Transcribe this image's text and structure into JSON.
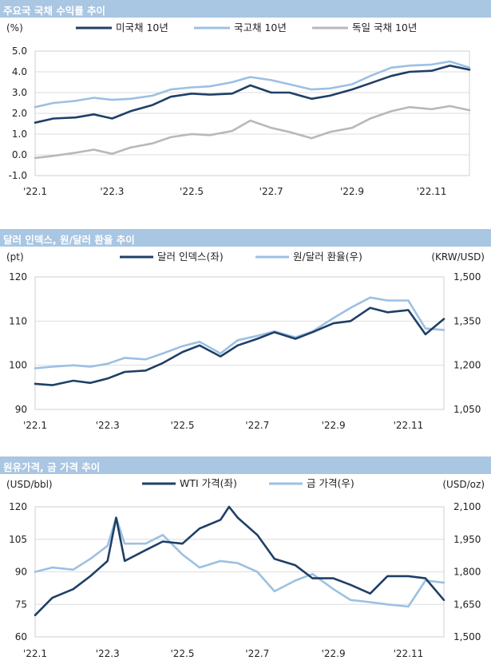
{
  "panels": [
    {
      "title": "주요국 국채 수익률 추이"
    },
    {
      "title": "달러 인덱스, 원/달러 환율 추이"
    },
    {
      "title": "원유가격, 금 가격 추이"
    }
  ],
  "chart_data": [
    {
      "type": "line",
      "title": "주요국 국채 수익률 추이",
      "left_unit": "(%)",
      "x_range": [
        "2022-01-01",
        "2022-11-30"
      ],
      "x_ticks": [
        {
          "label": "'22.1",
          "date": "2022-01-01"
        },
        {
          "label": "'22.3",
          "date": "2022-03-01"
        },
        {
          "label": "'22.5",
          "date": "2022-05-01"
        },
        {
          "label": "'22.7",
          "date": "2022-07-01"
        },
        {
          "label": "'22.9",
          "date": "2022-09-01"
        },
        {
          "label": "'22.11",
          "date": "2022-11-01"
        }
      ],
      "ylim": [
        -1.0,
        5.0
      ],
      "yticks": [
        "-1.0",
        "0.0",
        "1.0",
        "2.0",
        "3.0",
        "4.0",
        "5.0"
      ],
      "grid": true,
      "legend_position": "top",
      "series": [
        {
          "name": "미국채 10년",
          "color": "#1f3f66",
          "axis": "left",
          "dates": [
            "2022-01-01",
            "2022-01-15",
            "2022-02-01",
            "2022-02-15",
            "2022-03-01",
            "2022-03-15",
            "2022-04-01",
            "2022-04-15",
            "2022-05-01",
            "2022-05-15",
            "2022-06-01",
            "2022-06-15",
            "2022-07-01",
            "2022-07-15",
            "2022-08-01",
            "2022-08-15",
            "2022-09-01",
            "2022-09-15",
            "2022-10-01",
            "2022-10-15",
            "2022-11-01",
            "2022-11-15",
            "2022-11-30"
          ],
          "values": [
            1.55,
            1.75,
            1.8,
            1.95,
            1.75,
            2.1,
            2.4,
            2.8,
            2.95,
            2.9,
            2.95,
            3.35,
            3.0,
            3.0,
            2.7,
            2.85,
            3.15,
            3.45,
            3.8,
            4.0,
            4.05,
            4.3,
            4.1
          ]
        },
        {
          "name": "국고채 10년",
          "color": "#9cc0e2",
          "axis": "left",
          "dates": [
            "2022-01-01",
            "2022-01-15",
            "2022-02-01",
            "2022-02-15",
            "2022-03-01",
            "2022-03-15",
            "2022-04-01",
            "2022-04-15",
            "2022-05-01",
            "2022-05-15",
            "2022-06-01",
            "2022-06-15",
            "2022-07-01",
            "2022-07-15",
            "2022-08-01",
            "2022-08-15",
            "2022-09-01",
            "2022-09-15",
            "2022-10-01",
            "2022-10-15",
            "2022-11-01",
            "2022-11-15",
            "2022-11-30"
          ],
          "values": [
            2.3,
            2.5,
            2.6,
            2.75,
            2.65,
            2.7,
            2.85,
            3.15,
            3.25,
            3.3,
            3.5,
            3.75,
            3.6,
            3.4,
            3.15,
            3.2,
            3.4,
            3.8,
            4.2,
            4.3,
            4.35,
            4.5,
            4.2
          ]
        },
        {
          "name": "독일 국채 10년",
          "color": "#b8b8b8",
          "axis": "left",
          "dates": [
            "2022-01-01",
            "2022-01-15",
            "2022-02-01",
            "2022-02-15",
            "2022-03-01",
            "2022-03-15",
            "2022-04-01",
            "2022-04-15",
            "2022-05-01",
            "2022-05-15",
            "2022-06-01",
            "2022-06-15",
            "2022-07-01",
            "2022-07-15",
            "2022-08-01",
            "2022-08-15",
            "2022-09-01",
            "2022-09-15",
            "2022-10-01",
            "2022-10-15",
            "2022-11-01",
            "2022-11-15",
            "2022-11-30"
          ],
          "values": [
            -0.15,
            -0.05,
            0.1,
            0.25,
            0.05,
            0.35,
            0.55,
            0.85,
            1.0,
            0.95,
            1.15,
            1.65,
            1.3,
            1.1,
            0.8,
            1.1,
            1.3,
            1.75,
            2.1,
            2.3,
            2.2,
            2.35,
            2.15
          ]
        }
      ]
    },
    {
      "type": "line",
      "title": "달러 인덱스, 원/달러 환율 추이",
      "left_unit": "(pt)",
      "right_unit": "(KRW/USD)",
      "x_range": [
        "2022-01-01",
        "2022-11-30"
      ],
      "x_ticks": [
        {
          "label": "'22.1",
          "date": "2022-01-01"
        },
        {
          "label": "'22.3",
          "date": "2022-03-01"
        },
        {
          "label": "'22.5",
          "date": "2022-05-01"
        },
        {
          "label": "'22.7",
          "date": "2022-07-01"
        },
        {
          "label": "'22.9",
          "date": "2022-09-01"
        },
        {
          "label": "'22.11",
          "date": "2022-11-01"
        }
      ],
      "ylim": [
        90,
        120
      ],
      "yticks": [
        "90",
        "100",
        "110",
        "120"
      ],
      "ylim_right": [
        1050,
        1500
      ],
      "yticks_right": [
        "1,050",
        "1,200",
        "1,350",
        "1,500"
      ],
      "grid": true,
      "legend_position": "top",
      "series": [
        {
          "name": "달러 인덱스(좌)",
          "color": "#1f3f66",
          "axis": "left",
          "dates": [
            "2022-01-01",
            "2022-01-15",
            "2022-02-01",
            "2022-02-15",
            "2022-03-01",
            "2022-03-15",
            "2022-04-01",
            "2022-04-15",
            "2022-05-01",
            "2022-05-15",
            "2022-06-01",
            "2022-06-15",
            "2022-07-01",
            "2022-07-15",
            "2022-08-01",
            "2022-08-15",
            "2022-09-01",
            "2022-09-15",
            "2022-10-01",
            "2022-10-15",
            "2022-11-01",
            "2022-11-15",
            "2022-11-30"
          ],
          "values": [
            95.8,
            95.5,
            96.5,
            96.0,
            97.0,
            98.5,
            98.8,
            100.5,
            103.0,
            104.5,
            102.0,
            104.5,
            106.0,
            107.5,
            106.0,
            107.5,
            109.5,
            110.0,
            113.0,
            112.0,
            112.5,
            107.0,
            110.5
          ]
        },
        {
          "name": "원/달러 환율(우)",
          "color": "#9cc0e2",
          "axis": "right",
          "dates": [
            "2022-01-01",
            "2022-01-15",
            "2022-02-01",
            "2022-02-15",
            "2022-03-01",
            "2022-03-15",
            "2022-04-01",
            "2022-04-15",
            "2022-05-01",
            "2022-05-15",
            "2022-06-01",
            "2022-06-15",
            "2022-07-01",
            "2022-07-15",
            "2022-08-01",
            "2022-08-15",
            "2022-09-01",
            "2022-09-15",
            "2022-10-01",
            "2022-10-15",
            "2022-11-01",
            "2022-11-15",
            "2022-11-30"
          ],
          "values": [
            1190,
            1195,
            1200,
            1195,
            1205,
            1225,
            1220,
            1240,
            1265,
            1280,
            1240,
            1285,
            1300,
            1315,
            1295,
            1315,
            1360,
            1395,
            1430,
            1420,
            1420,
            1325,
            1320
          ]
        }
      ]
    },
    {
      "type": "line",
      "title": "원유가격, 금 가격 추이",
      "left_unit": "(USD/bbl)",
      "right_unit": "(USD/oz)",
      "x_range": [
        "2022-01-01",
        "2022-11-30"
      ],
      "x_ticks": [
        {
          "label": "'22.1",
          "date": "2022-01-01"
        },
        {
          "label": "'22.3",
          "date": "2022-03-01"
        },
        {
          "label": "'22.5",
          "date": "2022-05-01"
        },
        {
          "label": "'22.7",
          "date": "2022-07-01"
        },
        {
          "label": "'22.9",
          "date": "2022-09-01"
        },
        {
          "label": "'22.11",
          "date": "2022-11-01"
        }
      ],
      "ylim": [
        60,
        120
      ],
      "yticks": [
        "60",
        "75",
        "90",
        "105",
        "120"
      ],
      "ylim_right": [
        1500,
        2100
      ],
      "yticks_right": [
        "1,500",
        "1,650",
        "1,800",
        "1,950",
        "2,100"
      ],
      "grid": true,
      "legend_position": "top",
      "series": [
        {
          "name": "WTI 가격(좌)",
          "color": "#1f3f66",
          "axis": "left",
          "dates": [
            "2022-01-01",
            "2022-01-15",
            "2022-02-01",
            "2022-02-15",
            "2022-03-01",
            "2022-03-08",
            "2022-03-15",
            "2022-04-01",
            "2022-04-15",
            "2022-05-01",
            "2022-05-15",
            "2022-06-01",
            "2022-06-08",
            "2022-06-15",
            "2022-07-01",
            "2022-07-15",
            "2022-08-01",
            "2022-08-15",
            "2022-09-01",
            "2022-09-15",
            "2022-10-01",
            "2022-10-15",
            "2022-11-01",
            "2022-11-15",
            "2022-11-30"
          ],
          "values": [
            70,
            78,
            82,
            88,
            95,
            115,
            95,
            100,
            104,
            103,
            110,
            114,
            120,
            115,
            107,
            96,
            93,
            87,
            87,
            84,
            80,
            88,
            88,
            87,
            77
          ]
        },
        {
          "name": "금 가격(우)",
          "color": "#9cc0e2",
          "axis": "right",
          "dates": [
            "2022-01-01",
            "2022-01-15",
            "2022-02-01",
            "2022-02-15",
            "2022-03-01",
            "2022-03-08",
            "2022-03-15",
            "2022-04-01",
            "2022-04-15",
            "2022-05-01",
            "2022-05-15",
            "2022-06-01",
            "2022-06-15",
            "2022-07-01",
            "2022-07-15",
            "2022-08-01",
            "2022-08-15",
            "2022-09-01",
            "2022-09-15",
            "2022-10-01",
            "2022-10-15",
            "2022-11-01",
            "2022-11-15",
            "2022-11-30"
          ],
          "values": [
            1800,
            1820,
            1810,
            1860,
            1920,
            2050,
            1930,
            1930,
            1970,
            1880,
            1820,
            1850,
            1840,
            1800,
            1710,
            1760,
            1790,
            1720,
            1670,
            1660,
            1650,
            1640,
            1760,
            1750
          ]
        }
      ]
    }
  ]
}
